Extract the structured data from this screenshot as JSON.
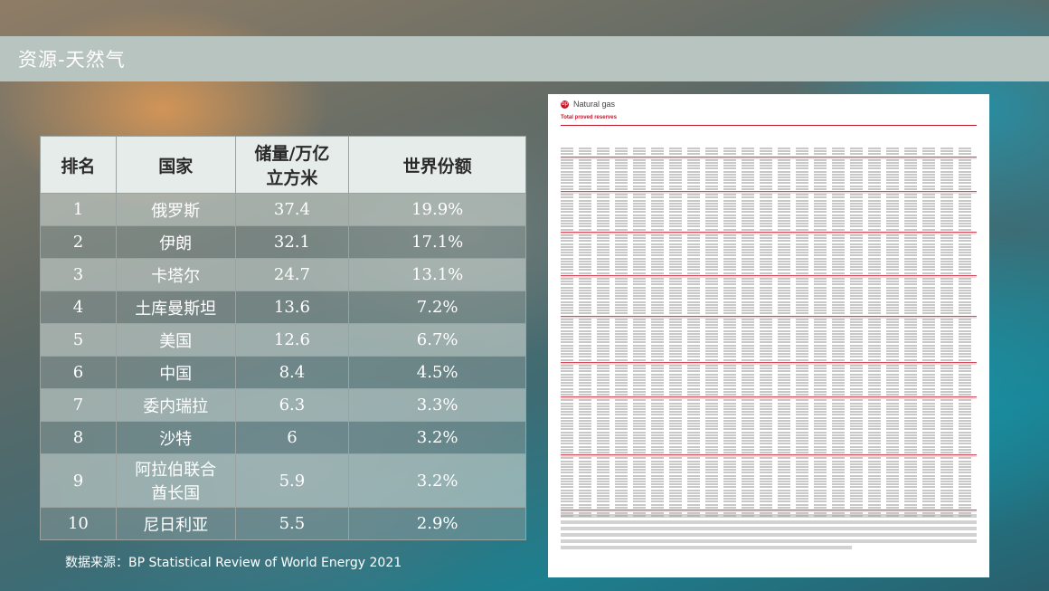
{
  "title": "资源-天然气",
  "table": {
    "headers": {
      "rank": "排名",
      "country": "国家",
      "reserves_line1": "储量/万亿",
      "reserves_line2": "立方米",
      "share": "世界份额"
    },
    "rows": [
      {
        "rank": "1",
        "country": "俄罗斯",
        "reserves": "37.4",
        "share": "19.9%"
      },
      {
        "rank": "2",
        "country": "伊朗",
        "reserves": "32.1",
        "share": "17.1%"
      },
      {
        "rank": "3",
        "country": "卡塔尔",
        "reserves": "24.7",
        "share": "13.1%"
      },
      {
        "rank": "4",
        "country": "土库曼斯坦",
        "reserves": "13.6",
        "share": "7.2%"
      },
      {
        "rank": "5",
        "country": "美国",
        "reserves": "12.6",
        "share": "6.7%"
      },
      {
        "rank": "6",
        "country": "中国",
        "reserves": "8.4",
        "share": "4.5%"
      },
      {
        "rank": "7",
        "country": "委内瑞拉",
        "reserves": "6.3",
        "share": "3.3%"
      },
      {
        "rank": "8",
        "country": "沙特",
        "reserves": "6",
        "share": "3.2%"
      },
      {
        "rank": "9",
        "country_line1": "阿拉伯联合",
        "country_line2": "酋长国",
        "reserves": "5.9",
        "share": "3.2%"
      },
      {
        "rank": "10",
        "country": "尼日利亚",
        "reserves": "5.5",
        "share": "2.9%"
      }
    ]
  },
  "source": "数据来源：BP Statistical Review of World Energy 2021",
  "document": {
    "logo": "bp",
    "title": "Natural gas",
    "subtitle": "Total proved reserves"
  },
  "colors": {
    "title_bar": "#b8c4bf",
    "doc_accent": "#c0182b"
  }
}
